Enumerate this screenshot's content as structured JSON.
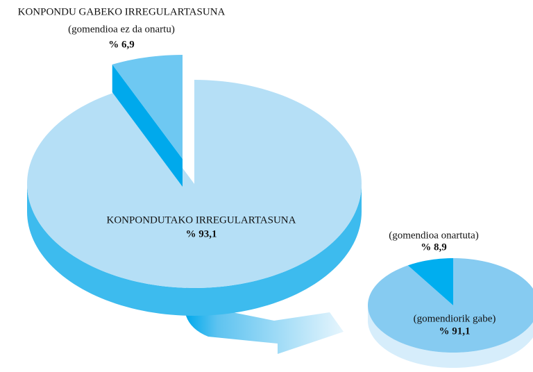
{
  "chart_data": [
    {
      "type": "pie3d",
      "categories": [
        "KONPONDUTAKO IRREGULARTASUNA",
        "KONPONDU GABEKO IRREGULARTASUNA"
      ],
      "category_notes": [
        null,
        "(gomendioa ez da onartu)"
      ],
      "values": [
        93.1,
        6.9
      ],
      "value_labels": [
        "% 93,1",
        "% 6,9"
      ],
      "colors": [
        "#b5dff6",
        "#6ec8f2"
      ],
      "exploded": [
        false,
        true
      ]
    },
    {
      "type": "pie3d",
      "categories": [
        "(gomendiorik gabe)",
        "(gomendioa onartuta)"
      ],
      "values": [
        91.1,
        8.9
      ],
      "value_labels": [
        "% 91,1",
        "% 8,9"
      ],
      "colors": [
        "#86cbf1",
        "#00aeef"
      ],
      "exploded": [
        false,
        false
      ]
    }
  ]
}
